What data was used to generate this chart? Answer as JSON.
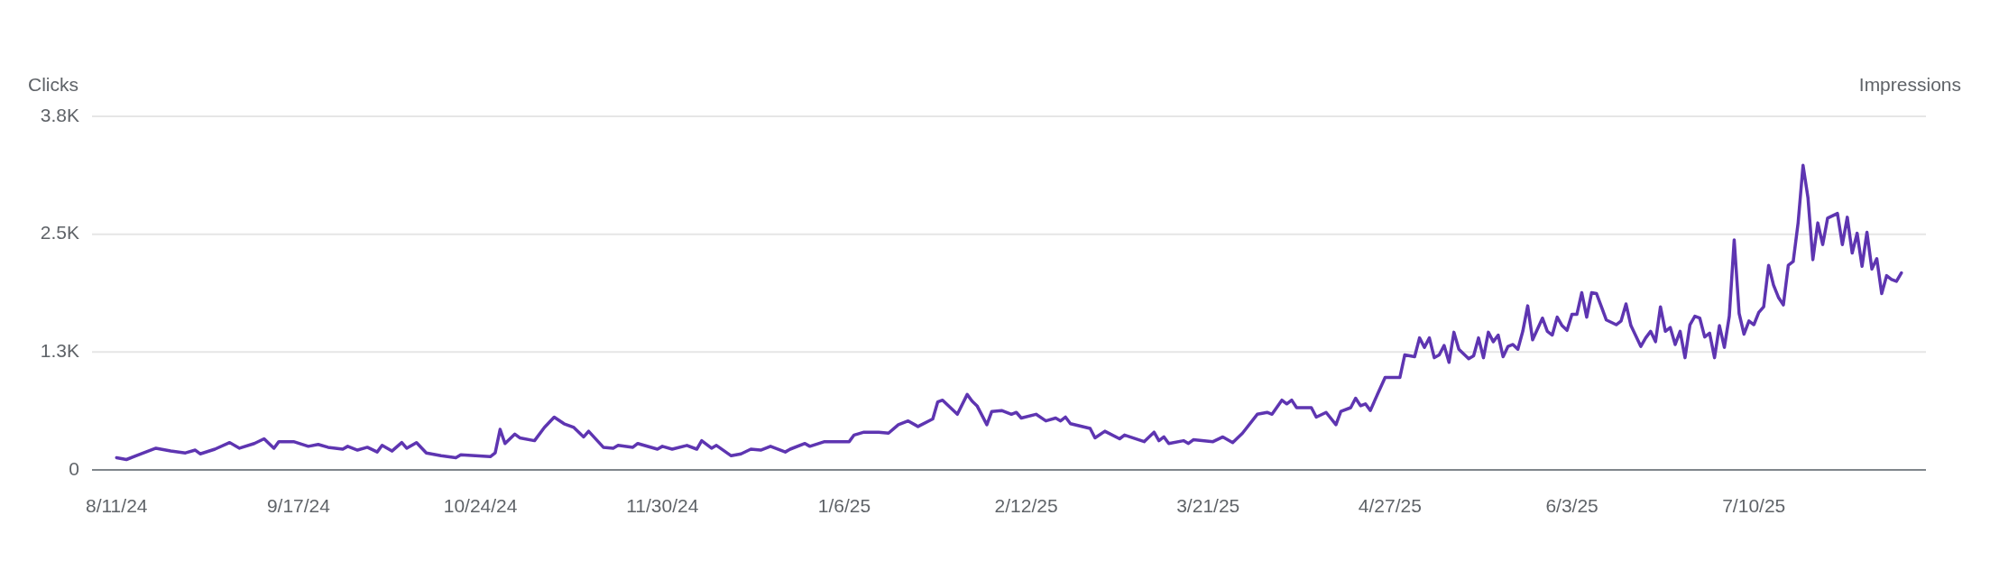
{
  "chart_data": {
    "type": "line",
    "ylabel": "Clicks",
    "y2label": "Impressions",
    "grid": "y",
    "line_style": "solid",
    "xlim": [
      "2024-08-06",
      "2025-08-14"
    ],
    "xticks": [
      {
        "value": "2024-08-11",
        "label": "8/11/24"
      },
      {
        "value": "2024-09-17",
        "label": "9/17/24"
      },
      {
        "value": "2024-10-24",
        "label": "10/24/24"
      },
      {
        "value": "2024-11-30",
        "label": "11/30/24"
      },
      {
        "value": "2025-01-06",
        "label": "1/6/25"
      },
      {
        "value": "2025-02-12",
        "label": "2/12/25"
      },
      {
        "value": "2025-03-21",
        "label": "3/21/25"
      },
      {
        "value": "2025-04-27",
        "label": "4/27/25"
      },
      {
        "value": "2025-06-03",
        "label": "6/3/25"
      },
      {
        "value": "2025-07-10",
        "label": "7/10/25"
      }
    ],
    "ylim": [
      0,
      3750
    ],
    "yticks": [
      0,
      {
        "value": 1250,
        "label": "1.3K"
      },
      {
        "value": 2500,
        "label": "2.5K"
      },
      {
        "value": 3750,
        "label": "3.8K"
      }
    ],
    "x": [
      "2024-08-11",
      "2024-08-13",
      "2024-08-16",
      "2024-08-19",
      "2024-08-22",
      "2024-08-25",
      "2024-08-27",
      "2024-08-28",
      "2024-08-31",
      "2024-09-03",
      "2024-09-05",
      "2024-09-08",
      "2024-09-10",
      "2024-09-12",
      "2024-09-13",
      "2024-09-16",
      "2024-09-19",
      "2024-09-21",
      "2024-09-23",
      "2024-09-26",
      "2024-09-27",
      "2024-09-29",
      "2024-10-01",
      "2024-10-03",
      "2024-10-04",
      "2024-10-06",
      "2024-10-08",
      "2024-10-09",
      "2024-10-11",
      "2024-10-13",
      "2024-10-16",
      "2024-10-19",
      "2024-10-20",
      "2024-10-23",
      "2024-10-26",
      "2024-10-27",
      "2024-10-28",
      "2024-10-29",
      "2024-10-31",
      "2024-11-01",
      "2024-11-04",
      "2024-11-06",
      "2024-11-08",
      "2024-11-10",
      "2024-11-12",
      "2024-11-14",
      "2024-11-15",
      "2024-11-18",
      "2024-11-20",
      "2024-11-21",
      "2024-11-24",
      "2024-11-25",
      "2024-11-29",
      "2024-11-30",
      "2024-12-02",
      "2024-12-05",
      "2024-12-07",
      "2024-12-08",
      "2024-12-10",
      "2024-12-11",
      "2024-12-14",
      "2024-12-16",
      "2024-12-18",
      "2024-12-20",
      "2024-12-22",
      "2024-12-25",
      "2024-12-26",
      "2024-12-29",
      "2024-12-30",
      "2025-01-02",
      "2025-01-07",
      "2025-01-08",
      "2025-01-10",
      "2025-01-13",
      "2025-01-15",
      "2025-01-17",
      "2025-01-19",
      "2025-01-21",
      "2025-01-24",
      "2025-01-25",
      "2025-01-26",
      "2025-01-29",
      "2025-01-31",
      "2025-02-01",
      "2025-02-02",
      "2025-02-04",
      "2025-02-05",
      "2025-02-07",
      "2025-02-09",
      "2025-02-10",
      "2025-02-11",
      "2025-02-14",
      "2025-02-16",
      "2025-02-18",
      "2025-02-19",
      "2025-02-20",
      "2025-02-21",
      "2025-02-25",
      "2025-02-26",
      "2025-02-28",
      "2025-03-03",
      "2025-03-04",
      "2025-03-08",
      "2025-03-10",
      "2025-03-11",
      "2025-03-12",
      "2025-03-13",
      "2025-03-16",
      "2025-03-17",
      "2025-03-18",
      "2025-03-22",
      "2025-03-24",
      "2025-03-26",
      "2025-03-28",
      "2025-03-31",
      "2025-04-02",
      "2025-04-03",
      "2025-04-05",
      "2025-04-06",
      "2025-04-07",
      "2025-04-08",
      "2025-04-11",
      "2025-04-12",
      "2025-04-14",
      "2025-04-16",
      "2025-04-17",
      "2025-04-19",
      "2025-04-20",
      "2025-04-21",
      "2025-04-22",
      "2025-04-23",
      "2025-04-24",
      "2025-04-26",
      "2025-04-29",
      "2025-04-30",
      "2025-05-02",
      "2025-05-03",
      "2025-05-04",
      "2025-05-05",
      "2025-05-06",
      "2025-05-07",
      "2025-05-08",
      "2025-05-09",
      "2025-05-10",
      "2025-05-11",
      "2025-05-13",
      "2025-05-14",
      "2025-05-15",
      "2025-05-16",
      "2025-05-17",
      "2025-05-18",
      "2025-05-19",
      "2025-05-20",
      "2025-05-21",
      "2025-05-22",
      "2025-05-23",
      "2025-05-24",
      "2025-05-25",
      "2025-05-26",
      "2025-05-28",
      "2025-05-29",
      "2025-05-30",
      "2025-05-31",
      "2025-06-01",
      "2025-06-02",
      "2025-06-03",
      "2025-06-04",
      "2025-06-05",
      "2025-06-06",
      "2025-06-07",
      "2025-06-08",
      "2025-06-10",
      "2025-06-12",
      "2025-06-13",
      "2025-06-14",
      "2025-06-15",
      "2025-06-17",
      "2025-06-18",
      "2025-06-19",
      "2025-06-20",
      "2025-06-21",
      "2025-06-22",
      "2025-06-23",
      "2025-06-24",
      "2025-06-25",
      "2025-06-26",
      "2025-06-27",
      "2025-06-28",
      "2025-06-29",
      "2025-06-30",
      "2025-07-01",
      "2025-07-02",
      "2025-07-03",
      "2025-07-04",
      "2025-07-05",
      "2025-07-06",
      "2025-07-07",
      "2025-07-08",
      "2025-07-09",
      "2025-07-10",
      "2025-07-11",
      "2025-07-12",
      "2025-07-13",
      "2025-07-14",
      "2025-07-15",
      "2025-07-16",
      "2025-07-17",
      "2025-07-18",
      "2025-07-19",
      "2025-07-20",
      "2025-07-21",
      "2025-07-22",
      "2025-07-23",
      "2025-07-24",
      "2025-07-25",
      "2025-07-27",
      "2025-07-28",
      "2025-07-29",
      "2025-07-30",
      "2025-07-31",
      "2025-08-01",
      "2025-08-02",
      "2025-08-03",
      "2025-08-04",
      "2025-08-05",
      "2025-08-06",
      "2025-08-07",
      "2025-08-08",
      "2025-08-09"
    ],
    "series": [
      {
        "color": "#5e35b1",
        "values": [
          130,
          110,
          170,
          230,
          200,
          180,
          210,
          170,
          220,
          290,
          230,
          280,
          330,
          230,
          300,
          300,
          250,
          270,
          240,
          220,
          250,
          210,
          240,
          190,
          260,
          200,
          290,
          230,
          290,
          180,
          150,
          130,
          160,
          150,
          140,
          180,
          430,
          280,
          380,
          340,
          310,
          450,
          560,
          490,
          450,
          350,
          410,
          240,
          230,
          260,
          240,
          280,
          220,
          250,
          220,
          260,
          220,
          310,
          230,
          260,
          150,
          170,
          220,
          210,
          250,
          190,
          220,
          280,
          250,
          300,
          300,
          370,
          400,
          400,
          390,
          480,
          520,
          460,
          540,
          720,
          740,
          590,
          800,
          730,
          680,
          480,
          620,
          630,
          590,
          610,
          550,
          590,
          520,
          550,
          520,
          560,
          490,
          440,
          340,
          410,
          330,
          370,
          300,
          400,
          310,
          350,
          280,
          310,
          280,
          320,
          300,
          350,
          290,
          390,
          590,
          610,
          590,
          740,
          700,
          740,
          660,
          660,
          560,
          610,
          480,
          620,
          660,
          760,
          680,
          700,
          630,
          750,
          980,
          980,
          1220,
          1200,
          1400,
          1300,
          1400,
          1190,
          1220,
          1320,
          1140,
          1460,
          1280,
          1180,
          1210,
          1400,
          1190,
          1460,
          1360,
          1430,
          1200,
          1310,
          1330,
          1280,
          1470,
          1740,
          1380,
          1610,
          1470,
          1430,
          1620,
          1530,
          1480,
          1650,
          1650,
          1880,
          1620,
          1880,
          1870,
          1590,
          1540,
          1580,
          1760,
          1530,
          1310,
          1400,
          1470,
          1360,
          1730,
          1470,
          1510,
          1330,
          1470,
          1190,
          1540,
          1630,
          1610,
          1410,
          1450,
          1190,
          1530,
          1300,
          1630,
          2440,
          1660,
          1440,
          1580,
          1540,
          1670,
          1730,
          2170,
          1960,
          1830,
          1750,
          2170,
          2210,
          2620,
          3230,
          2890,
          2230,
          2620,
          2390,
          2670,
          2720,
          2390,
          2680,
          2300,
          2510,
          2160,
          2520,
          2130,
          2240,
          1870,
          2060,
          2020,
          2000,
          2090
        ]
      }
    ]
  }
}
